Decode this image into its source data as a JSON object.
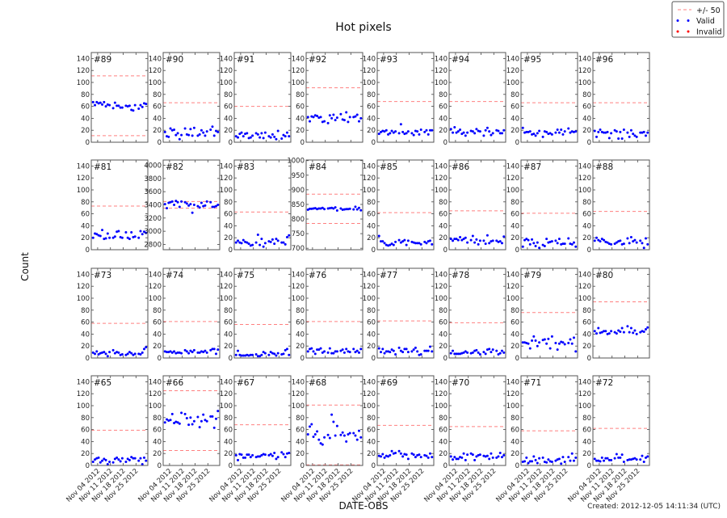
{
  "chart_data": {
    "type": "scatter",
    "title": "Hot pixels",
    "xlabel": "DATE-OBS",
    "ylabel": "Count",
    "footer": "Created: 2012-12-05 14:11:34 (UTC)",
    "legend": {
      "placement": "top-right",
      "entries": [
        {
          "label": "+/- 50",
          "style": "dashed-line",
          "color": "#ff8080"
        },
        {
          "label": "Valid",
          "style": "dots",
          "color": "#0000ff"
        },
        {
          "label": "Invalid",
          "style": "dots",
          "color": "#ff0000"
        }
      ]
    },
    "grid": false,
    "xlim": [
      "2012-10-31T12:00",
      "2012-12-01T12:00"
    ],
    "xticks": [
      "2012-11-04",
      "2012-11-11",
      "2012-11-18",
      "2012-11-25"
    ],
    "xtick_labels": [
      "Nov 04 2012",
      "Nov 11 2012",
      "Nov 18 2012",
      "Nov 25 2012"
    ],
    "dates": [
      "2012-11-01",
      "2012-11-02",
      "2012-11-03",
      "2012-11-04",
      "2012-11-05",
      "2012-11-06",
      "2012-11-07",
      "2012-11-08",
      "2012-11-09",
      "2012-11-10",
      "2012-11-12",
      "2012-11-13",
      "2012-11-14",
      "2012-11-15",
      "2012-11-16",
      "2012-11-17",
      "2012-11-19",
      "2012-11-20",
      "2012-11-21",
      "2012-11-22",
      "2012-11-23",
      "2012-11-24",
      "2012-11-26",
      "2012-11-27",
      "2012-11-28",
      "2012-11-29",
      "2012-11-30"
    ],
    "default_ylim": [
      0,
      150
    ],
    "default_yticks": [
      0,
      20,
      40,
      60,
      80,
      100,
      120,
      140
    ],
    "panels": [
      {
        "label": "#89",
        "limits": [
          111,
          11
        ],
        "values": [
          67,
          62,
          67,
          65,
          66,
          63,
          67,
          60,
          63,
          62,
          57,
          66,
          61,
          61,
          58,
          58,
          61,
          60,
          61,
          54,
          53,
          62,
          56,
          62,
          59,
          65,
          64
        ]
      },
      {
        "label": "#90",
        "limits": [
          66
        ],
        "values": [
          17,
          10,
          9,
          23,
          20,
          21,
          12,
          15,
          5,
          12,
          23,
          13,
          12,
          22,
          11,
          24,
          11,
          13,
          20,
          16,
          11,
          18,
          21,
          26,
          11,
          19,
          17
        ]
      },
      {
        "label": "#91",
        "limits": [
          60
        ],
        "values": [
          10,
          8,
          14,
          16,
          10,
          14,
          15,
          7,
          8,
          11,
          15,
          13,
          8,
          15,
          7,
          16,
          10,
          8,
          13,
          9,
          5,
          19,
          6,
          12,
          10,
          16,
          10
        ]
      },
      {
        "label": "#92",
        "limits": [
          91
        ],
        "values": [
          42,
          35,
          43,
          42,
          45,
          44,
          41,
          42,
          34,
          35,
          32,
          45,
          40,
          46,
          37,
          41,
          47,
          38,
          37,
          50,
          34,
          42,
          42,
          43,
          46,
          35,
          40
        ]
      },
      {
        "label": "#93",
        "limits": [
          68
        ],
        "values": [
          14,
          17,
          19,
          18,
          20,
          13,
          15,
          19,
          16,
          18,
          15,
          30,
          17,
          14,
          15,
          18,
          15,
          12,
          19,
          18,
          13,
          21,
          17,
          20,
          13,
          20,
          20
        ]
      },
      {
        "label": "#94",
        "limits": [
          68
        ],
        "values": [
          22,
          16,
          25,
          16,
          18,
          21,
          14,
          16,
          11,
          16,
          19,
          18,
          15,
          22,
          19,
          18,
          11,
          20,
          24,
          18,
          12,
          15,
          20,
          19,
          15,
          15,
          20
        ]
      },
      {
        "label": "#95",
        "limits": [
          66
        ],
        "values": [
          24,
          16,
          17,
          17,
          18,
          13,
          14,
          11,
          15,
          19,
          9,
          18,
          17,
          14,
          15,
          13,
          16,
          21,
          16,
          21,
          13,
          18,
          23,
          16,
          18,
          17,
          18
        ]
      },
      {
        "label": "#96",
        "limits": [
          66
        ],
        "values": [
          19,
          9,
          17,
          21,
          17,
          16,
          16,
          17,
          7,
          15,
          20,
          18,
          6,
          17,
          6,
          21,
          16,
          9,
          20,
          14,
          11,
          9,
          16,
          16,
          17,
          11,
          16
        ]
      },
      {
        "label": "#81",
        "limits": [
          73
        ],
        "values": [
          20,
          27,
          26,
          24,
          23,
          33,
          18,
          19,
          27,
          20,
          20,
          22,
          30,
          31,
          21,
          20,
          29,
          20,
          18,
          29,
          21,
          22,
          20,
          31,
          26,
          30,
          28
        ]
      },
      {
        "label": "#82",
        "limits": [
          3450,
          3350
        ],
        "ylim": [
          2720,
          4080
        ],
        "yticks": [
          2800,
          3000,
          3200,
          3400,
          3600,
          3800,
          4000
        ],
        "values": [
          3410,
          3350,
          3430,
          3440,
          3450,
          3400,
          3460,
          3440,
          3370,
          3450,
          3440,
          3420,
          3390,
          3410,
          3280,
          3400,
          3380,
          3360,
          3430,
          3380,
          3390,
          3450,
          3440,
          3370,
          3370,
          3380,
          3400
        ]
      },
      {
        "label": "#83",
        "limits": [
          63
        ],
        "values": [
          12,
          15,
          12,
          11,
          16,
          13,
          12,
          10,
          7,
          8,
          12,
          25,
          8,
          18,
          5,
          11,
          14,
          13,
          17,
          10,
          18,
          15,
          12,
          12,
          9,
          21,
          24
        ]
      },
      {
        "label": "#84",
        "limits": [
          885,
          785
        ],
        "ylim": [
          695,
          1002
        ],
        "yticks": [
          700,
          750,
          800,
          850,
          900,
          950,
          1000
        ],
        "values": [
          832,
          835,
          835,
          836,
          837,
          834,
          836,
          836,
          838,
          834,
          836,
          837,
          838,
          836,
          840,
          829,
          836,
          832,
          833,
          834,
          834,
          835,
          833,
          842,
          833,
          838,
          830
        ]
      },
      {
        "label": "#85",
        "limits": [
          62
        ],
        "values": [
          23,
          14,
          14,
          11,
          8,
          7,
          8,
          10,
          8,
          13,
          16,
          12,
          14,
          16,
          8,
          15,
          13,
          12,
          11,
          11,
          11,
          9,
          13,
          11,
          14,
          15,
          9
        ]
      },
      {
        "label": "#86",
        "limits": [
          65
        ],
        "values": [
          18,
          15,
          18,
          18,
          16,
          21,
          16,
          18,
          20,
          12,
          16,
          23,
          12,
          17,
          9,
          15,
          15,
          10,
          24,
          11,
          14,
          15,
          15,
          13,
          14,
          11,
          22
        ]
      },
      {
        "label": "#87",
        "limits": [
          61
        ],
        "values": [
          5,
          16,
          18,
          16,
          9,
          17,
          11,
          6,
          12,
          3,
          8,
          6,
          18,
          12,
          13,
          14,
          15,
          11,
          18,
          9,
          10,
          10,
          19,
          10,
          9,
          12,
          5
        ]
      },
      {
        "label": "#88",
        "limits": [
          64
        ],
        "values": [
          15,
          20,
          16,
          14,
          18,
          16,
          13,
          12,
          10,
          9,
          10,
          12,
          14,
          15,
          9,
          10,
          19,
          11,
          21,
          14,
          16,
          12,
          15,
          11,
          3,
          19,
          9
        ]
      },
      {
        "label": "#73",
        "limits": [
          58
        ],
        "values": [
          9,
          7,
          11,
          6,
          8,
          9,
          10,
          7,
          3,
          10,
          13,
          8,
          10,
          9,
          5,
          6,
          5,
          7,
          10,
          8,
          5,
          7,
          7,
          6,
          9,
          15,
          18
        ]
      },
      {
        "label": "#74",
        "limits": [
          61
        ],
        "values": [
          11,
          10,
          10,
          11,
          9,
          11,
          8,
          9,
          9,
          8,
          13,
          11,
          8,
          12,
          10,
          13,
          9,
          9,
          11,
          10,
          12,
          9,
          13,
          15,
          15,
          7,
          14
        ]
      },
      {
        "label": "#75",
        "limits": [
          56
        ],
        "values": [
          5,
          12,
          5,
          4,
          4,
          4,
          5,
          4,
          5,
          5,
          6,
          3,
          3,
          5,
          10,
          8,
          5,
          10,
          8,
          7,
          4,
          8,
          6,
          7,
          13,
          15,
          5
        ]
      },
      {
        "label": "#76",
        "limits": [
          61
        ],
        "values": [
          11,
          15,
          16,
          11,
          7,
          14,
          14,
          16,
          9,
          11,
          9,
          16,
          8,
          8,
          11,
          11,
          12,
          14,
          9,
          15,
          11,
          10,
          15,
          10,
          12,
          9,
          15
        ]
      },
      {
        "label": "#77",
        "limits": [
          62
        ],
        "values": [
          16,
          10,
          15,
          8,
          11,
          11,
          10,
          14,
          12,
          6,
          17,
          12,
          10,
          15,
          15,
          10,
          11,
          14,
          17,
          11,
          5,
          6,
          12,
          12,
          12,
          19,
          11
        ]
      },
      {
        "label": "#78",
        "limits": [
          59
        ],
        "values": [
          8,
          12,
          7,
          7,
          7,
          7,
          8,
          9,
          11,
          9,
          8,
          9,
          12,
          13,
          9,
          6,
          10,
          7,
          14,
          15,
          10,
          14,
          12,
          6,
          8,
          12,
          9
        ]
      },
      {
        "label": "#79",
        "limits": [
          76
        ],
        "values": [
          26,
          26,
          25,
          24,
          16,
          29,
          36,
          29,
          20,
          26,
          30,
          31,
          24,
          32,
          16,
          36,
          25,
          14,
          24,
          27,
          26,
          23,
          25,
          31,
          24,
          34,
          11
        ]
      },
      {
        "label": "#80",
        "limits": [
          94
        ],
        "values": [
          45,
          41,
          50,
          42,
          43,
          45,
          45,
          40,
          41,
          45,
          43,
          41,
          46,
          44,
          50,
          43,
          53,
          43,
          50,
          42,
          46,
          40,
          43,
          45,
          44,
          48,
          51
        ]
      },
      {
        "label": "#65",
        "limits": [
          59
        ],
        "values": [
          6,
          10,
          12,
          13,
          5,
          8,
          11,
          9,
          2,
          6,
          5,
          11,
          13,
          10,
          7,
          12,
          6,
          11,
          9,
          14,
          12,
          12,
          8,
          12,
          2,
          13,
          8
        ]
      },
      {
        "label": "#66",
        "limits": [
          125,
          25
        ],
        "values": [
          72,
          77,
          75,
          76,
          86,
          71,
          73,
          72,
          70,
          88,
          86,
          79,
          68,
          80,
          69,
          74,
          81,
          64,
          74,
          85,
          76,
          74,
          82,
          82,
          63,
          78,
          91
        ]
      },
      {
        "label": "#67",
        "limits": [
          68
        ],
        "values": [
          17,
          9,
          19,
          18,
          13,
          13,
          18,
          18,
          14,
          17,
          14,
          15,
          15,
          17,
          19,
          18,
          17,
          19,
          16,
          21,
          11,
          14,
          22,
          19,
          14,
          20,
          21
        ]
      },
      {
        "label": "#68",
        "limits": [
          101,
          1
        ],
        "values": [
          52,
          65,
          69,
          48,
          52,
          57,
          43,
          37,
          35,
          47,
          51,
          46,
          85,
          73,
          50,
          66,
          51,
          55,
          50,
          40,
          52,
          54,
          54,
          50,
          43,
          58,
          47
        ]
      },
      {
        "label": "#69",
        "limits": [
          67
        ],
        "values": [
          16,
          15,
          19,
          13,
          16,
          15,
          17,
          24,
          20,
          21,
          24,
          20,
          15,
          19,
          18,
          11,
          20,
          18,
          14,
          17,
          18,
          14,
          17,
          16,
          13,
          20,
          14
        ]
      },
      {
        "label": "#70",
        "limits": [
          65
        ],
        "values": [
          15,
          10,
          14,
          11,
          11,
          14,
          13,
          20,
          9,
          18,
          20,
          18,
          9,
          15,
          17,
          18,
          16,
          15,
          16,
          11,
          20,
          13,
          13,
          15,
          21,
          14,
          17
        ]
      },
      {
        "label": "#71",
        "limits": [
          58
        ],
        "values": [
          6,
          7,
          13,
          4,
          7,
          7,
          15,
          9,
          4,
          12,
          13,
          6,
          5,
          10,
          7,
          6,
          8,
          10,
          11,
          3,
          14,
          6,
          14,
          8,
          20,
          8,
          13
        ]
      },
      {
        "label": "#72",
        "limits": [
          62
        ],
        "values": [
          11,
          8,
          8,
          7,
          13,
          8,
          12,
          12,
          9,
          9,
          12,
          19,
          13,
          13,
          18,
          6,
          9,
          10,
          10,
          11,
          12,
          10,
          10,
          16,
          6,
          13,
          15
        ]
      }
    ],
    "colors": {
      "valid": "#0000ff",
      "invalid": "#ff0000",
      "limit": "#ff8080",
      "frame": "#555555"
    }
  }
}
